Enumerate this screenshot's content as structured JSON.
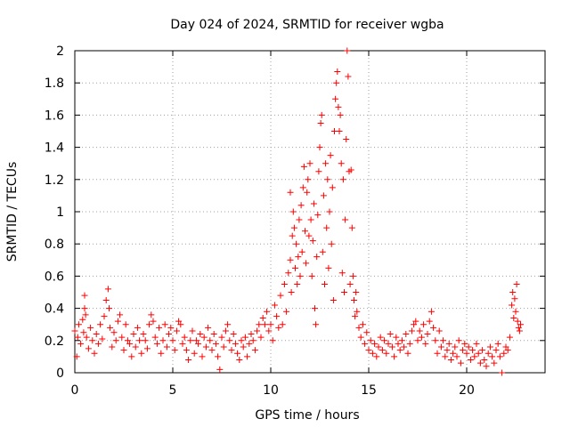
{
  "chart_data": {
    "type": "scatter",
    "title": "Day 024 of 2024, SRMTID for receiver wgba",
    "xlabel": "GPS time / hours",
    "ylabel": "SRMTID / TECUs",
    "xlim": [
      0,
      24
    ],
    "ylim": [
      0,
      2
    ],
    "x_ticks": [
      0,
      5,
      10,
      15,
      20
    ],
    "x_tick_labels": [
      "0",
      "5",
      "10",
      "15",
      "20"
    ],
    "y_ticks": [
      0,
      0.2,
      0.4,
      0.6,
      0.8,
      1,
      1.2,
      1.4,
      1.6,
      1.8,
      2
    ],
    "y_tick_labels": [
      "0",
      "0.2",
      "0.4",
      "0.6",
      "0.8",
      "1",
      "1.2",
      "1.4",
      "1.6",
      "1.8",
      "2"
    ],
    "grid": true,
    "marker": "+",
    "series": [
      {
        "name": "SRMTID",
        "color": "#ff0000",
        "points": [
          [
            0.0,
            0.26
          ],
          [
            0.1,
            0.1
          ],
          [
            0.15,
            0.22
          ],
          [
            0.2,
            0.3
          ],
          [
            0.3,
            0.18
          ],
          [
            0.4,
            0.33
          ],
          [
            0.45,
            0.25
          ],
          [
            0.5,
            0.4
          ],
          [
            0.5,
            0.48
          ],
          [
            0.55,
            0.36
          ],
          [
            0.6,
            0.22
          ],
          [
            0.7,
            0.15
          ],
          [
            0.8,
            0.28
          ],
          [
            0.9,
            0.2
          ],
          [
            1.0,
            0.12
          ],
          [
            1.1,
            0.24
          ],
          [
            1.2,
            0.18
          ],
          [
            1.3,
            0.3
          ],
          [
            1.4,
            0.21
          ],
          [
            1.5,
            0.35
          ],
          [
            1.6,
            0.45
          ],
          [
            1.7,
            0.52
          ],
          [
            1.75,
            0.4
          ],
          [
            1.8,
            0.28
          ],
          [
            1.9,
            0.16
          ],
          [
            2.0,
            0.25
          ],
          [
            2.1,
            0.2
          ],
          [
            2.2,
            0.32
          ],
          [
            2.3,
            0.36
          ],
          [
            2.4,
            0.22
          ],
          [
            2.5,
            0.14
          ],
          [
            2.6,
            0.3
          ],
          [
            2.7,
            0.2
          ],
          [
            2.8,
            0.18
          ],
          [
            2.9,
            0.1
          ],
          [
            3.0,
            0.24
          ],
          [
            3.1,
            0.16
          ],
          [
            3.2,
            0.28
          ],
          [
            3.3,
            0.2
          ],
          [
            3.4,
            0.12
          ],
          [
            3.5,
            0.24
          ],
          [
            3.6,
            0.2
          ],
          [
            3.7,
            0.15
          ],
          [
            3.8,
            0.3
          ],
          [
            3.9,
            0.36
          ],
          [
            4.0,
            0.32
          ],
          [
            4.1,
            0.22
          ],
          [
            4.2,
            0.18
          ],
          [
            4.3,
            0.28
          ],
          [
            4.4,
            0.12
          ],
          [
            4.5,
            0.2
          ],
          [
            4.6,
            0.3
          ],
          [
            4.7,
            0.16
          ],
          [
            4.8,
            0.24
          ],
          [
            4.9,
            0.28
          ],
          [
            5.0,
            0.2
          ],
          [
            5.1,
            0.14
          ],
          [
            5.2,
            0.26
          ],
          [
            5.3,
            0.32
          ],
          [
            5.4,
            0.3
          ],
          [
            5.5,
            0.18
          ],
          [
            5.6,
            0.22
          ],
          [
            5.7,
            0.14
          ],
          [
            5.8,
            0.08
          ],
          [
            5.9,
            0.2
          ],
          [
            6.0,
            0.26
          ],
          [
            6.1,
            0.12
          ],
          [
            6.2,
            0.2
          ],
          [
            6.3,
            0.18
          ],
          [
            6.4,
            0.24
          ],
          [
            6.5,
            0.1
          ],
          [
            6.6,
            0.22
          ],
          [
            6.7,
            0.16
          ],
          [
            6.8,
            0.28
          ],
          [
            6.9,
            0.2
          ],
          [
            7.0,
            0.14
          ],
          [
            7.1,
            0.24
          ],
          [
            7.2,
            0.18
          ],
          [
            7.3,
            0.1
          ],
          [
            7.4,
            0.02
          ],
          [
            7.5,
            0.22
          ],
          [
            7.6,
            0.16
          ],
          [
            7.7,
            0.26
          ],
          [
            7.8,
            0.3
          ],
          [
            7.9,
            0.2
          ],
          [
            8.0,
            0.14
          ],
          [
            8.1,
            0.24
          ],
          [
            8.2,
            0.18
          ],
          [
            8.3,
            0.12
          ],
          [
            8.4,
            0.08
          ],
          [
            8.5,
            0.2
          ],
          [
            8.6,
            0.16
          ],
          [
            8.7,
            0.22
          ],
          [
            8.8,
            0.1
          ],
          [
            8.9,
            0.18
          ],
          [
            9.0,
            0.24
          ],
          [
            9.1,
            0.2
          ],
          [
            9.2,
            0.14
          ],
          [
            9.3,
            0.26
          ],
          [
            9.4,
            0.3
          ],
          [
            9.5,
            0.22
          ],
          [
            9.6,
            0.34
          ],
          [
            9.7,
            0.3
          ],
          [
            9.8,
            0.38
          ],
          [
            9.9,
            0.26
          ],
          [
            10.0,
            0.3
          ],
          [
            10.1,
            0.2
          ],
          [
            10.2,
            0.42
          ],
          [
            10.3,
            0.35
          ],
          [
            10.4,
            0.28
          ],
          [
            10.5,
            0.48
          ],
          [
            10.6,
            0.3
          ],
          [
            10.7,
            0.55
          ],
          [
            10.8,
            0.38
          ],
          [
            10.9,
            0.62
          ],
          [
            11.0,
            0.7
          ],
          [
            11.0,
            1.12
          ],
          [
            11.05,
            0.5
          ],
          [
            11.1,
            0.85
          ],
          [
            11.15,
            1.0
          ],
          [
            11.2,
            0.9
          ],
          [
            11.25,
            0.65
          ],
          [
            11.3,
            0.8
          ],
          [
            11.35,
            0.55
          ],
          [
            11.4,
            0.72
          ],
          [
            11.45,
            0.95
          ],
          [
            11.5,
            0.6
          ],
          [
            11.55,
            1.04
          ],
          [
            11.6,
            0.75
          ],
          [
            11.65,
            1.15
          ],
          [
            11.7,
            1.28
          ],
          [
            11.75,
            0.88
          ],
          [
            11.8,
            0.68
          ],
          [
            11.85,
            1.12
          ],
          [
            11.9,
            1.2
          ],
          [
            11.95,
            0.85
          ],
          [
            12.0,
            1.3
          ],
          [
            12.05,
            0.95
          ],
          [
            12.1,
            0.6
          ],
          [
            12.15,
            0.82
          ],
          [
            12.2,
            1.05
          ],
          [
            12.25,
            0.4
          ],
          [
            12.3,
            0.3
          ],
          [
            12.35,
            0.72
          ],
          [
            12.4,
            0.98
          ],
          [
            12.45,
            1.25
          ],
          [
            12.5,
            1.4
          ],
          [
            12.55,
            1.55
          ],
          [
            12.6,
            1.6
          ],
          [
            12.65,
            0.75
          ],
          [
            12.7,
            1.1
          ],
          [
            12.75,
            0.55
          ],
          [
            12.8,
            1.3
          ],
          [
            12.85,
            0.9
          ],
          [
            12.9,
            1.2
          ],
          [
            12.95,
            0.65
          ],
          [
            13.0,
            1.0
          ],
          [
            13.05,
            1.35
          ],
          [
            13.1,
            0.8
          ],
          [
            13.15,
            1.15
          ],
          [
            13.2,
            0.45
          ],
          [
            13.25,
            1.5
          ],
          [
            13.3,
            1.7
          ],
          [
            13.35,
            1.8
          ],
          [
            13.4,
            1.87
          ],
          [
            13.45,
            1.65
          ],
          [
            13.5,
            1.5
          ],
          [
            13.55,
            1.6
          ],
          [
            13.6,
            1.3
          ],
          [
            13.65,
            0.62
          ],
          [
            13.7,
            1.2
          ],
          [
            13.75,
            0.5
          ],
          [
            13.8,
            0.95
          ],
          [
            13.85,
            1.45
          ],
          [
            13.9,
            2.0
          ],
          [
            13.95,
            1.84
          ],
          [
            14.0,
            1.25
          ],
          [
            14.05,
            0.55
          ],
          [
            14.1,
            1.26
          ],
          [
            14.15,
            0.9
          ],
          [
            14.2,
            0.6
          ],
          [
            14.25,
            0.45
          ],
          [
            14.3,
            0.35
          ],
          [
            14.35,
            0.5
          ],
          [
            14.4,
            0.38
          ],
          [
            14.5,
            0.28
          ],
          [
            14.6,
            0.22
          ],
          [
            14.7,
            0.3
          ],
          [
            14.8,
            0.18
          ],
          [
            14.9,
            0.25
          ],
          [
            15.0,
            0.14
          ],
          [
            15.1,
            0.2
          ],
          [
            15.2,
            0.12
          ],
          [
            15.3,
            0.18
          ],
          [
            15.4,
            0.1
          ],
          [
            15.5,
            0.16
          ],
          [
            15.6,
            0.22
          ],
          [
            15.7,
            0.14
          ],
          [
            15.8,
            0.2
          ],
          [
            15.9,
            0.12
          ],
          [
            16.0,
            0.18
          ],
          [
            16.1,
            0.24
          ],
          [
            16.2,
            0.16
          ],
          [
            16.3,
            0.1
          ],
          [
            16.4,
            0.22
          ],
          [
            16.5,
            0.18
          ],
          [
            16.6,
            0.14
          ],
          [
            16.7,
            0.2
          ],
          [
            16.8,
            0.16
          ],
          [
            16.9,
            0.24
          ],
          [
            17.0,
            0.12
          ],
          [
            17.1,
            0.18
          ],
          [
            17.2,
            0.26
          ],
          [
            17.3,
            0.3
          ],
          [
            17.4,
            0.32
          ],
          [
            17.5,
            0.2
          ],
          [
            17.6,
            0.26
          ],
          [
            17.7,
            0.22
          ],
          [
            17.8,
            0.3
          ],
          [
            17.9,
            0.18
          ],
          [
            18.0,
            0.24
          ],
          [
            18.1,
            0.32
          ],
          [
            18.2,
            0.38
          ],
          [
            18.3,
            0.28
          ],
          [
            18.4,
            0.2
          ],
          [
            18.5,
            0.12
          ],
          [
            18.6,
            0.26
          ],
          [
            18.7,
            0.16
          ],
          [
            18.8,
            0.2
          ],
          [
            18.9,
            0.1
          ],
          [
            19.0,
            0.14
          ],
          [
            19.1,
            0.18
          ],
          [
            19.2,
            0.08
          ],
          [
            19.3,
            0.12
          ],
          [
            19.4,
            0.16
          ],
          [
            19.5,
            0.1
          ],
          [
            19.6,
            0.2
          ],
          [
            19.7,
            0.06
          ],
          [
            19.8,
            0.14
          ],
          [
            19.9,
            0.18
          ],
          [
            20.0,
            0.12
          ],
          [
            20.1,
            0.16
          ],
          [
            20.2,
            0.08
          ],
          [
            20.3,
            0.14
          ],
          [
            20.4,
            0.1
          ],
          [
            20.5,
            0.18
          ],
          [
            20.6,
            0.12
          ],
          [
            20.7,
            0.06
          ],
          [
            20.8,
            0.14
          ],
          [
            20.9,
            0.08
          ],
          [
            21.0,
            0.04
          ],
          [
            21.1,
            0.12
          ],
          [
            21.2,
            0.16
          ],
          [
            21.3,
            0.1
          ],
          [
            21.4,
            0.06
          ],
          [
            21.5,
            0.14
          ],
          [
            21.6,
            0.18
          ],
          [
            21.7,
            0.1
          ],
          [
            21.8,
            0.0
          ],
          [
            21.9,
            0.12
          ],
          [
            22.0,
            0.16
          ],
          [
            22.1,
            0.14
          ],
          [
            22.2,
            0.22
          ],
          [
            22.3,
            0.42
          ],
          [
            22.35,
            0.5
          ],
          [
            22.4,
            0.34
          ],
          [
            22.45,
            0.46
          ],
          [
            22.5,
            0.38
          ],
          [
            22.55,
            0.55
          ],
          [
            22.6,
            0.32
          ],
          [
            22.65,
            0.28
          ],
          [
            22.7,
            0.26
          ],
          [
            22.75,
            0.3
          ]
        ]
      }
    ]
  }
}
